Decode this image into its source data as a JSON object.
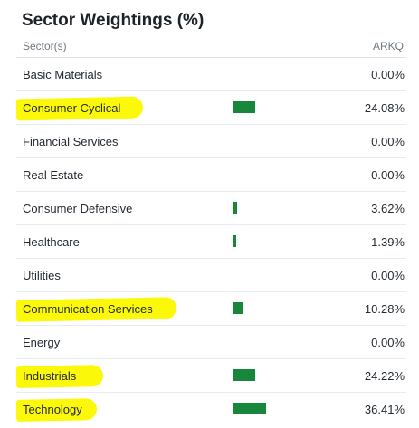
{
  "title": "Sector Weightings (%)",
  "columns": {
    "sector": "Sector(s)",
    "fund": "ARKQ"
  },
  "colors": {
    "bar": "#16873b",
    "highlight": "#fcf80a"
  },
  "rows": [
    {
      "sector": "Basic Materials",
      "value": "0.00%",
      "pct": 0.0,
      "highlighted": false
    },
    {
      "sector": "Consumer Cyclical",
      "value": "24.08%",
      "pct": 24.08,
      "highlighted": true
    },
    {
      "sector": "Financial Services",
      "value": "0.00%",
      "pct": 0.0,
      "highlighted": false
    },
    {
      "sector": "Real Estate",
      "value": "0.00%",
      "pct": 0.0,
      "highlighted": false
    },
    {
      "sector": "Consumer Defensive",
      "value": "3.62%",
      "pct": 3.62,
      "highlighted": false
    },
    {
      "sector": "Healthcare",
      "value": "1.39%",
      "pct": 1.39,
      "highlighted": false
    },
    {
      "sector": "Utilities",
      "value": "0.00%",
      "pct": 0.0,
      "highlighted": false
    },
    {
      "sector": "Communication Services",
      "value": "10.28%",
      "pct": 10.28,
      "highlighted": true
    },
    {
      "sector": "Energy",
      "value": "0.00%",
      "pct": 0.0,
      "highlighted": false
    },
    {
      "sector": "Industrials",
      "value": "24.22%",
      "pct": 24.22,
      "highlighted": true
    },
    {
      "sector": "Technology",
      "value": "36.41%",
      "pct": 36.41,
      "highlighted": true
    }
  ]
}
